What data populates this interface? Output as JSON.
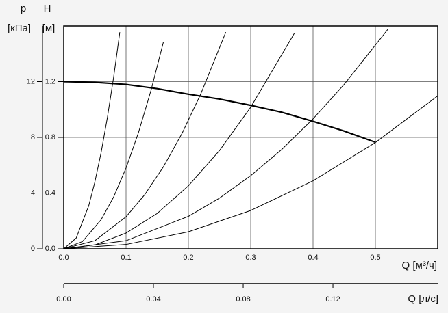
{
  "chart_data": {
    "type": "line",
    "ylabel": "H",
    "yunit": "[м]",
    "y2label": "p",
    "y2unit": "[кПа]",
    "xlabel": "Q [м³/ч]",
    "x2label": "Q [л/с]",
    "xlim": [
      0,
      0.6
    ],
    "xticks": [
      {
        "value": 0,
        "label": "0.0"
      },
      0.1,
      0.2,
      0.3,
      0.4,
      0.5
    ],
    "ylim": [
      0,
      1.6
    ],
    "yticks": [
      {
        "value": 0,
        "label": "0.0"
      },
      0.4,
      0.8,
      1.2
    ],
    "y2lim": [
      0,
      16
    ],
    "y2ticks": [
      0,
      4,
      8,
      12
    ],
    "x2lim": [
      0,
      0.1667
    ],
    "x2ticks": [
      {
        "value": 0,
        "label": "0.00"
      },
      {
        "value": 0.04,
        "label": "0.04"
      },
      {
        "value": 0.08,
        "label": "0.08"
      },
      {
        "value": 0.12,
        "label": "0.12"
      }
    ],
    "grid": true,
    "series": [
      {
        "color": "#000000",
        "width": 2.2,
        "x": [
          0,
          0.05,
          0.1,
          0.15,
          0.2,
          0.25,
          0.3,
          0.35,
          0.4,
          0.45,
          0.5
        ],
        "values": [
          1.2,
          1.195,
          1.18,
          1.15,
          1.11,
          1.075,
          1.03,
          0.98,
          0.915,
          0.845,
          0.765
        ]
      },
      {
        "color": "#000000",
        "width": 1,
        "x": [
          0,
          0.02,
          0.04,
          0.05,
          0.06,
          0.07,
          0.08,
          0.09
        ],
        "values": [
          0,
          0.077,
          0.307,
          0.48,
          0.691,
          0.941,
          1.229,
          1.555
        ]
      },
      {
        "color": "#000000",
        "width": 1,
        "x": [
          0,
          0.03,
          0.06,
          0.08,
          0.1,
          0.12,
          0.14,
          0.16
        ],
        "values": [
          0,
          0.052,
          0.209,
          0.371,
          0.58,
          0.835,
          1.137,
          1.485
        ]
      },
      {
        "color": "#000000",
        "width": 1,
        "x": [
          0,
          0.05,
          0.1,
          0.13,
          0.16,
          0.19,
          0.22,
          0.26
        ],
        "values": [
          0,
          0.058,
          0.23,
          0.389,
          0.589,
          0.83,
          1.113,
          1.555
        ]
      },
      {
        "color": "#000000",
        "width": 1,
        "x": [
          0,
          0.05,
          0.1,
          0.15,
          0.2,
          0.25,
          0.3,
          0.37
        ],
        "values": [
          0,
          0.028,
          0.113,
          0.254,
          0.452,
          0.706,
          1.017,
          1.547
        ]
      },
      {
        "color": "#000000",
        "width": 1,
        "x": [
          0,
          0.1,
          0.2,
          0.25,
          0.3,
          0.35,
          0.4,
          0.45,
          0.52
        ],
        "values": [
          0,
          0.058,
          0.233,
          0.364,
          0.525,
          0.714,
          0.933,
          1.181,
          1.576
        ]
      },
      {
        "color": "#000000",
        "width": 1,
        "x": [
          0,
          0.1,
          0.2,
          0.3,
          0.4,
          0.5,
          0.6
        ],
        "values": [
          0,
          0.031,
          0.122,
          0.275,
          0.488,
          0.763,
          1.098
        ]
      }
    ]
  }
}
